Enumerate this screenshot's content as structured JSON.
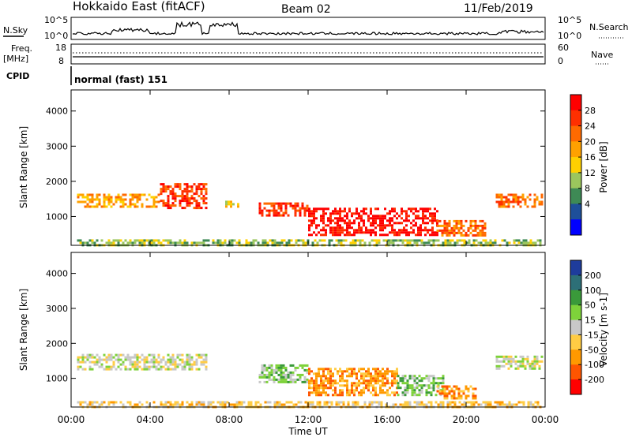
{
  "header": {
    "title": "Hokkaido East (fitACF)",
    "beam": "Beam 02",
    "date": "11/Feb/2019"
  },
  "status_panel": {
    "nsky_label": "N.Sky",
    "nsearch_label": "N.Search",
    "noise_ticks": [
      "10^5",
      "10^0"
    ],
    "freq_label_line1": "Freq.",
    "freq_label_line2": "[MHz]",
    "freq_ticks": [
      "18",
      "8"
    ],
    "nave_label": "Nave",
    "nave_ticks": [
      "60",
      "0"
    ],
    "cpid_label": "CPID",
    "cpid_text": "normal (fast) 151"
  },
  "colorbars": {
    "power": {
      "label": "Power [dB]",
      "ticks": [
        "28",
        "24",
        "20",
        "16",
        "12",
        "8",
        "4"
      ],
      "colors": [
        "#ff0000",
        "#ff3000",
        "#ff6a00",
        "#ffa100",
        "#ffd000",
        "#9bc65d",
        "#3e8a55",
        "#1e4f9a",
        "#0000ff"
      ]
    },
    "velocity": {
      "label": "Velocity [m s-1]",
      "ticks": [
        "200",
        "100",
        "50",
        "15",
        "-15",
        "-50",
        "-100",
        "-200"
      ],
      "colors": [
        "#1e3c9c",
        "#2d6f77",
        "#3a9a3a",
        "#7ed23a",
        "#c8c8c8",
        "#ffcc44",
        "#ff9900",
        "#ff5500",
        "#ff0000"
      ]
    }
  },
  "chart_data": {
    "type": "heatmap",
    "x_tick_labels": [
      "00:00",
      "04:00",
      "08:00",
      "12:00",
      "16:00",
      "20:00",
      "00:00"
    ],
    "xlabel": "Time UT",
    "ylabel": "Slant Range [km]",
    "y_tick_labels": [
      "1000",
      "2000",
      "3000",
      "4000"
    ],
    "xlim_hours": [
      0,
      24
    ],
    "ylim_km": [
      180,
      4600
    ],
    "panels": [
      {
        "name": "Power",
        "echo_regions": [
          {
            "t": [
              0.3,
              4.5
            ],
            "r": [
              1300,
              1650
            ],
            "level": 3
          },
          {
            "t": [
              4.5,
              6.8
            ],
            "r": [
              1250,
              1950
            ],
            "level": 1
          },
          {
            "t": [
              7.8,
              8.5
            ],
            "r": [
              1300,
              1450
            ],
            "level": 4
          },
          {
            "t": [
              9.5,
              12.0
            ],
            "r": [
              1000,
              1400
            ],
            "level": 1
          },
          {
            "t": [
              12.0,
              18.5
            ],
            "r": [
              450,
              1250
            ],
            "level": 0
          },
          {
            "t": [
              18.5,
              21.0
            ],
            "r": [
              450,
              900
            ],
            "level": 2
          },
          {
            "t": [
              21.5,
              23.8
            ],
            "r": [
              1250,
              1650
            ],
            "level": 2
          },
          {
            "t": [
              0.3,
              23.8
            ],
            "r": [
              200,
              350
            ],
            "level": 5
          }
        ]
      },
      {
        "name": "Velocity",
        "echo_regions": [
          {
            "t": [
              0.3,
              6.8
            ],
            "r": [
              1250,
              1700
            ],
            "level": 4
          },
          {
            "t": [
              9.5,
              12.0
            ],
            "r": [
              900,
              1400
            ],
            "level": 3
          },
          {
            "t": [
              12.0,
              16.5
            ],
            "r": [
              500,
              1300
            ],
            "level": 6
          },
          {
            "t": [
              16.5,
              18.8
            ],
            "r": [
              500,
              1100
            ],
            "level": 3
          },
          {
            "t": [
              18.5,
              20.5
            ],
            "r": [
              450,
              800
            ],
            "level": 6
          },
          {
            "t": [
              21.5,
              23.8
            ],
            "r": [
              1250,
              1650
            ],
            "level": 4
          },
          {
            "t": [
              0.3,
              23.8
            ],
            "r": [
              200,
              350
            ],
            "level": 5
          }
        ]
      }
    ]
  }
}
